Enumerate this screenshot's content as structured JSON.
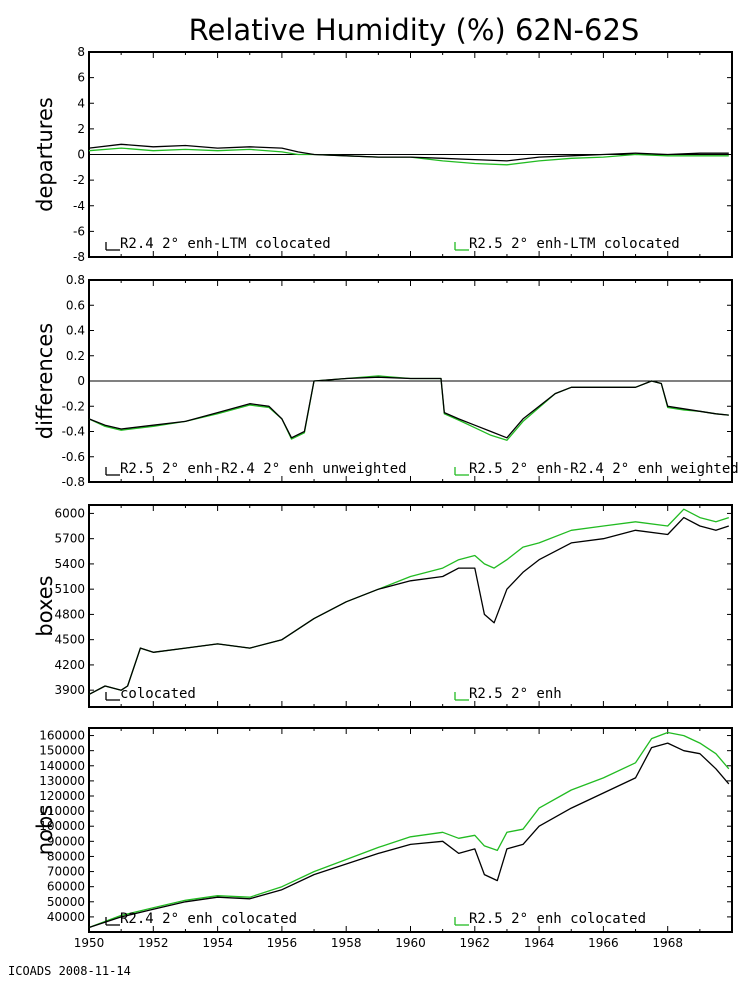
{
  "title": "Relative Humidity (%) 62N-62S",
  "footer": "ICOADS 2008-11-14",
  "colors": {
    "black": "#000000",
    "green": "#22bb22"
  },
  "x_axis": {
    "range": [
      1950,
      1970
    ],
    "tick_labels": [
      "1950",
      "1952",
      "1954",
      "1956",
      "1958",
      "1960",
      "1962",
      "1964",
      "1966",
      "1968"
    ]
  },
  "chart_data": [
    {
      "type": "line",
      "ylabel": "departures",
      "ylim": [
        -8,
        8
      ],
      "yticks": [
        "8",
        "6",
        "4",
        "2",
        "0",
        "-2",
        "-4",
        "-6",
        "-8"
      ],
      "reference_line": 0,
      "series": [
        {
          "name": "R2.4 2° enh-LTM colocated",
          "color": "black",
          "x": [
            1950.0,
            1951.0,
            1952.0,
            1953.0,
            1954.0,
            1955.0,
            1956.0,
            1956.5,
            1957.0,
            1958.0,
            1959.0,
            1960.0,
            1961.0,
            1962.0,
            1963.0,
            1964.0,
            1965.0,
            1966.0,
            1967.0,
            1968.0,
            1969.0,
            1969.9
          ],
          "values": [
            0.5,
            0.8,
            0.6,
            0.7,
            0.5,
            0.6,
            0.5,
            0.2,
            0.0,
            -0.1,
            -0.2,
            -0.2,
            -0.3,
            -0.4,
            -0.5,
            -0.2,
            -0.1,
            0.0,
            0.1,
            0.0,
            0.1,
            0.1
          ]
        },
        {
          "name": "R2.5 2° enh-LTM colocated",
          "color": "green",
          "x": [
            1950.0,
            1951.0,
            1952.0,
            1953.0,
            1954.0,
            1955.0,
            1956.0,
            1956.5,
            1957.0,
            1958.0,
            1959.0,
            1960.0,
            1961.0,
            1962.0,
            1963.0,
            1964.0,
            1965.0,
            1966.0,
            1967.0,
            1968.0,
            1969.0,
            1969.9
          ],
          "values": [
            0.3,
            0.5,
            0.3,
            0.4,
            0.3,
            0.4,
            0.2,
            0.0,
            0.0,
            -0.1,
            -0.2,
            -0.2,
            -0.5,
            -0.7,
            -0.8,
            -0.5,
            -0.3,
            -0.2,
            0.0,
            -0.1,
            -0.1,
            -0.1
          ]
        }
      ]
    },
    {
      "type": "line",
      "ylabel": "differences",
      "ylim": [
        -0.8,
        0.8
      ],
      "yticks": [
        "0.8",
        "0.6",
        "0.4",
        "0.2",
        "0",
        "-0.2",
        "-0.4",
        "-0.6",
        "-0.8"
      ],
      "reference_line": 0,
      "series": [
        {
          "name": "R2.5 2° enh-R2.4 2° enh unweighted",
          "color": "black",
          "x": [
            1950.0,
            1950.5,
            1951.0,
            1952.0,
            1953.0,
            1954.0,
            1955.0,
            1955.6,
            1956.0,
            1956.3,
            1956.7,
            1957.0,
            1958.0,
            1959.0,
            1960.0,
            1960.95,
            1961.05,
            1961.5,
            1962.0,
            1962.5,
            1963.0,
            1963.5,
            1964.0,
            1964.5,
            1965.0,
            1966.0,
            1967.0,
            1967.5,
            1967.8,
            1968.0,
            1968.5,
            1969.0,
            1969.5,
            1969.9
          ],
          "values": [
            -0.3,
            -0.35,
            -0.38,
            -0.35,
            -0.32,
            -0.25,
            -0.18,
            -0.2,
            -0.3,
            -0.45,
            -0.4,
            0.0,
            0.02,
            0.03,
            0.02,
            0.02,
            -0.25,
            -0.3,
            -0.35,
            -0.4,
            -0.45,
            -0.3,
            -0.2,
            -0.1,
            -0.05,
            -0.05,
            -0.05,
            0.0,
            -0.02,
            -0.2,
            -0.22,
            -0.24,
            -0.26,
            -0.27
          ]
        },
        {
          "name": "R2.5 2° enh-R2.4 2° enh weighted",
          "color": "green",
          "x": [
            1950.0,
            1950.5,
            1951.0,
            1952.0,
            1953.0,
            1954.0,
            1955.0,
            1955.6,
            1956.0,
            1956.3,
            1956.7,
            1957.0,
            1958.0,
            1959.0,
            1960.0,
            1960.95,
            1961.05,
            1961.5,
            1962.0,
            1962.5,
            1963.0,
            1963.5,
            1964.0,
            1964.5,
            1965.0,
            1966.0,
            1967.0,
            1967.5,
            1967.8,
            1968.0,
            1968.5,
            1969.0,
            1969.5,
            1969.9
          ],
          "values": [
            -0.3,
            -0.36,
            -0.39,
            -0.36,
            -0.32,
            -0.26,
            -0.19,
            -0.21,
            -0.3,
            -0.46,
            -0.41,
            0.0,
            0.02,
            0.04,
            0.02,
            0.02,
            -0.26,
            -0.31,
            -0.37,
            -0.43,
            -0.47,
            -0.32,
            -0.21,
            -0.1,
            -0.05,
            -0.05,
            -0.05,
            0.0,
            -0.02,
            -0.21,
            -0.23,
            -0.24,
            -0.26,
            -0.27
          ]
        }
      ]
    },
    {
      "type": "line",
      "ylabel": "boxes",
      "ylim": [
        3700,
        6100
      ],
      "yticks": [
        "6000",
        "5700",
        "5400",
        "5100",
        "4800",
        "4500",
        "4200",
        "3900"
      ],
      "yticks_values": [
        6000,
        5700,
        5400,
        5100,
        4800,
        4500,
        4200,
        3900
      ],
      "series": [
        {
          "name": "colocated",
          "color": "black",
          "x": [
            1950.0,
            1950.5,
            1951.0,
            1951.2,
            1951.6,
            1952.0,
            1953.0,
            1954.0,
            1955.0,
            1956.0,
            1957.0,
            1958.0,
            1959.0,
            1960.0,
            1961.0,
            1961.5,
            1962.0,
            1962.3,
            1962.6,
            1963.0,
            1963.5,
            1964.0,
            1965.0,
            1966.0,
            1967.0,
            1968.0,
            1968.5,
            1969.0,
            1969.5,
            1969.9
          ],
          "values": [
            3850,
            3950,
            3900,
            3950,
            4400,
            4350,
            4400,
            4450,
            4400,
            4500,
            4750,
            4950,
            5100,
            5200,
            5250,
            5350,
            5350,
            4800,
            4700,
            5100,
            5300,
            5450,
            5650,
            5700,
            5800,
            5750,
            5950,
            5850,
            5800,
            5850
          ]
        },
        {
          "name": "R2.5 2° enh",
          "color": "green",
          "x": [
            1950.0,
            1950.5,
            1951.0,
            1951.2,
            1951.6,
            1952.0,
            1953.0,
            1954.0,
            1955.0,
            1956.0,
            1957.0,
            1958.0,
            1959.0,
            1960.0,
            1961.0,
            1961.5,
            1962.0,
            1962.3,
            1962.6,
            1963.0,
            1963.5,
            1964.0,
            1965.0,
            1966.0,
            1967.0,
            1968.0,
            1968.5,
            1969.0,
            1969.5,
            1969.9
          ],
          "values": [
            3850,
            3950,
            3900,
            3950,
            4400,
            4350,
            4400,
            4450,
            4400,
            4500,
            4750,
            4950,
            5100,
            5250,
            5350,
            5450,
            5500,
            5400,
            5350,
            5450,
            5600,
            5650,
            5800,
            5850,
            5900,
            5850,
            6050,
            5950,
            5900,
            5950
          ]
        }
      ]
    },
    {
      "type": "line",
      "ylabel": "nobs",
      "ylim": [
        30000,
        165000
      ],
      "yticks": [
        "160000",
        "150000",
        "140000",
        "130000",
        "120000",
        "110000",
        "100000",
        "90000",
        "80000",
        "70000",
        "60000",
        "50000",
        "40000"
      ],
      "yticks_values": [
        160000,
        150000,
        140000,
        130000,
        120000,
        110000,
        100000,
        90000,
        80000,
        70000,
        60000,
        50000,
        40000
      ],
      "series": [
        {
          "name": "R2.4 2° enh colocated",
          "color": "black",
          "x": [
            1950.0,
            1951.0,
            1952.0,
            1953.0,
            1954.0,
            1955.0,
            1956.0,
            1957.0,
            1958.0,
            1959.0,
            1960.0,
            1961.0,
            1961.5,
            1962.0,
            1962.3,
            1962.7,
            1963.0,
            1963.5,
            1964.0,
            1965.0,
            1966.0,
            1967.0,
            1967.5,
            1968.0,
            1968.5,
            1969.0,
            1969.5,
            1969.9
          ],
          "values": [
            33000,
            40000,
            45000,
            50000,
            53000,
            52000,
            58000,
            68000,
            75000,
            82000,
            88000,
            90000,
            82000,
            85000,
            68000,
            64000,
            85000,
            88000,
            100000,
            112000,
            122000,
            132000,
            152000,
            155000,
            150000,
            148000,
            138000,
            128000
          ]
        },
        {
          "name": "R2.5 2° enh colocated",
          "color": "green",
          "x": [
            1950.0,
            1951.0,
            1952.0,
            1953.0,
            1954.0,
            1955.0,
            1956.0,
            1957.0,
            1958.0,
            1959.0,
            1960.0,
            1961.0,
            1961.5,
            1962.0,
            1962.3,
            1962.7,
            1963.0,
            1963.5,
            1964.0,
            1965.0,
            1966.0,
            1967.0,
            1967.5,
            1968.0,
            1968.5,
            1969.0,
            1969.5,
            1969.9
          ],
          "values": [
            33000,
            41000,
            46000,
            51000,
            54000,
            53000,
            60000,
            70000,
            78000,
            86000,
            93000,
            96000,
            92000,
            94000,
            87000,
            84000,
            96000,
            98000,
            112000,
            124000,
            132000,
            142000,
            158000,
            162000,
            160000,
            155000,
            148000,
            138000
          ]
        }
      ]
    }
  ]
}
